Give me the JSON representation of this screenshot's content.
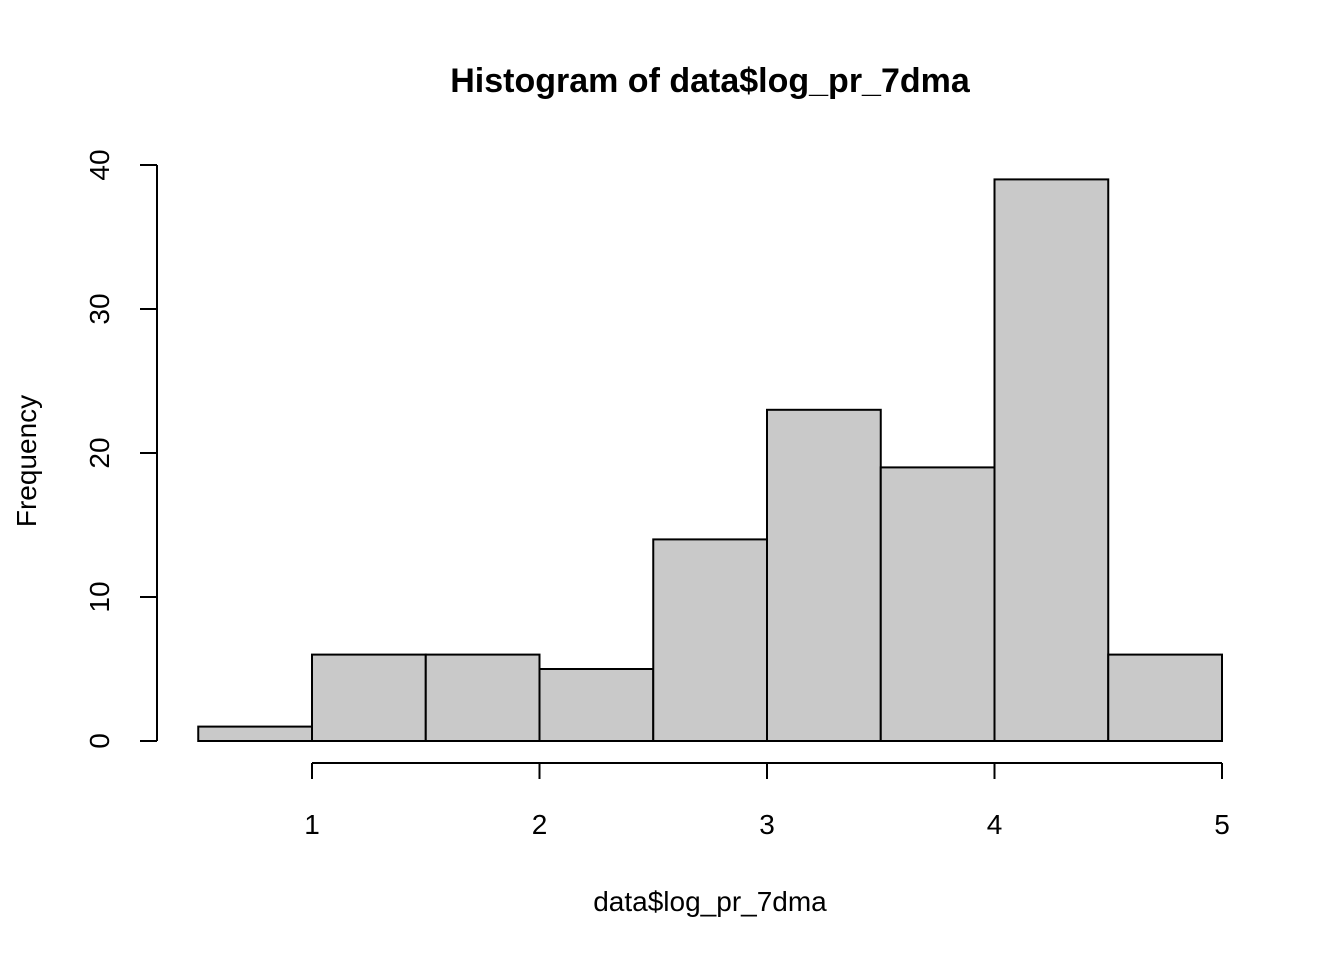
{
  "chart_data": {
    "type": "bar",
    "subtype": "histogram",
    "title": "Histogram of data$log_pr_7dma",
    "xlabel": "data$log_pr_7dma",
    "ylabel": "Frequency",
    "bins": [
      {
        "x0": 0.5,
        "x1": 1.0,
        "count": 1
      },
      {
        "x0": 1.0,
        "x1": 1.5,
        "count": 6
      },
      {
        "x0": 1.5,
        "x1": 2.0,
        "count": 6
      },
      {
        "x0": 2.0,
        "x1": 2.5,
        "count": 5
      },
      {
        "x0": 2.5,
        "x1": 3.0,
        "count": 14
      },
      {
        "x0": 3.0,
        "x1": 3.5,
        "count": 23
      },
      {
        "x0": 3.5,
        "x1": 4.0,
        "count": 19
      },
      {
        "x0": 4.0,
        "x1": 4.5,
        "count": 39
      },
      {
        "x0": 4.5,
        "x1": 5.0,
        "count": 6
      }
    ],
    "x_ticks": [
      "1",
      "2",
      "3",
      "4",
      "5"
    ],
    "y_ticks": [
      "0",
      "10",
      "20",
      "30",
      "40"
    ],
    "xlim": [
      0.5,
      5.0
    ],
    "ylim": [
      0,
      40
    ],
    "bar_color": "#c9c9c9",
    "grid": false
  }
}
